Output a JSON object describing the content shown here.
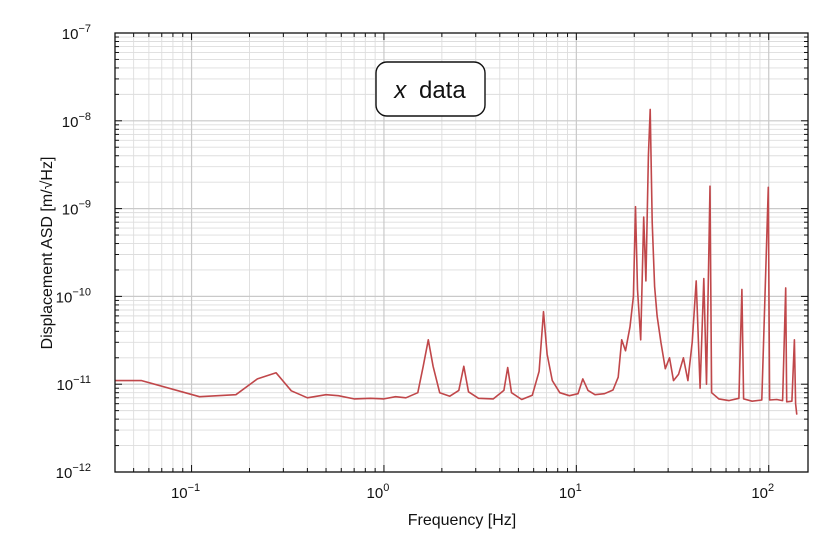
{
  "chart_data": {
    "type": "line",
    "xlabel": "Frequency [Hz]",
    "ylabel": "Displacement ASD [m/√Hz]",
    "x_scale": "log",
    "y_scale": "log",
    "xlim": [
      0.04,
      160
    ],
    "ylim": [
      1e-12,
      1e-07
    ],
    "grid": true,
    "x_ticks": [
      {
        "value": 0.1,
        "base": "10",
        "exp": "−1"
      },
      {
        "value": 1,
        "base": "10",
        "exp": "0"
      },
      {
        "value": 10,
        "base": "10",
        "exp": "1"
      },
      {
        "value": 100,
        "base": "10",
        "exp": "2"
      }
    ],
    "y_ticks": [
      {
        "value": 1e-12,
        "base": "10",
        "exp": "−12"
      },
      {
        "value": 1e-11,
        "base": "10",
        "exp": "−11"
      },
      {
        "value": 1e-10,
        "base": "10",
        "exp": "−10"
      },
      {
        "value": 1e-09,
        "base": "10",
        "exp": "−9"
      },
      {
        "value": 1e-08,
        "base": "10",
        "exp": "−8"
      },
      {
        "value": 1e-07,
        "base": "10",
        "exp": "−7"
      }
    ],
    "annotation": {
      "var": "x",
      "text": "data"
    },
    "series": [
      {
        "color": "#c0474a",
        "points": [
          [
            0.04,
            1.1e-11
          ],
          [
            0.055,
            1.1e-11
          ],
          [
            0.11,
            7.2e-12
          ],
          [
            0.17,
            7.6e-12
          ],
          [
            0.22,
            1.15e-11
          ],
          [
            0.275,
            1.35e-11
          ],
          [
            0.33,
            8.4e-12
          ],
          [
            0.4,
            7e-12
          ],
          [
            0.5,
            7.6e-12
          ],
          [
            0.58,
            7.4e-12
          ],
          [
            0.7,
            6.8e-12
          ],
          [
            0.85,
            6.9e-12
          ],
          [
            1.0,
            6.8e-12
          ],
          [
            1.15,
            7.2e-12
          ],
          [
            1.3,
            7e-12
          ],
          [
            1.5,
            8e-12
          ],
          [
            1.6,
            1.6e-11
          ],
          [
            1.7,
            3.2e-11
          ],
          [
            1.8,
            1.6e-11
          ],
          [
            1.95,
            8e-12
          ],
          [
            2.2,
            7.3e-12
          ],
          [
            2.45,
            8.5e-12
          ],
          [
            2.6,
            1.6e-11
          ],
          [
            2.75,
            8.2e-12
          ],
          [
            3.1,
            6.9e-12
          ],
          [
            3.7,
            6.8e-12
          ],
          [
            4.2,
            8.5e-12
          ],
          [
            4.4,
            1.55e-11
          ],
          [
            4.6,
            8e-12
          ],
          [
            5.2,
            6.7e-12
          ],
          [
            5.9,
            7.5e-12
          ],
          [
            6.4,
            1.4e-11
          ],
          [
            6.75,
            6.7e-11
          ],
          [
            7.05,
            2.2e-11
          ],
          [
            7.5,
            1.1e-11
          ],
          [
            8.2,
            8e-12
          ],
          [
            9.2,
            7.4e-12
          ],
          [
            10.2,
            7.8e-12
          ],
          [
            10.8,
            1.15e-11
          ],
          [
            11.5,
            8.5e-12
          ],
          [
            12.5,
            7.6e-12
          ],
          [
            14,
            7.8e-12
          ],
          [
            15.5,
            8.6e-12
          ],
          [
            16.5,
            1.2e-11
          ],
          [
            17.2,
            3.2e-11
          ],
          [
            18,
            2.4e-11
          ],
          [
            19,
            4.5e-11
          ],
          [
            19.8,
            1e-10
          ],
          [
            20.3,
            1.05e-09
          ],
          [
            20.8,
            1.2e-10
          ],
          [
            21.6,
            3.2e-11
          ],
          [
            22.4,
            8e-10
          ],
          [
            23,
            1.5e-10
          ],
          [
            23.7,
            4e-09
          ],
          [
            24.2,
            1.35e-08
          ],
          [
            24.8,
            7e-10
          ],
          [
            25.5,
            1.3e-10
          ],
          [
            26.3,
            6e-11
          ],
          [
            27.5,
            3e-11
          ],
          [
            29,
            1.5e-11
          ],
          [
            30.5,
            2e-11
          ],
          [
            32,
            1.1e-11
          ],
          [
            34,
            1.3e-11
          ],
          [
            36,
            2e-11
          ],
          [
            38,
            1.1e-11
          ],
          [
            40,
            3e-11
          ],
          [
            42,
            1.5e-10
          ],
          [
            44,
            9e-12
          ],
          [
            46,
            1.6e-10
          ],
          [
            47.5,
            1e-11
          ],
          [
            49.5,
            1.8e-09
          ],
          [
            50.5,
            8e-12
          ],
          [
            55,
            6.8e-12
          ],
          [
            62,
            6.5e-12
          ],
          [
            70,
            6.9e-12
          ],
          [
            72.5,
            1.2e-10
          ],
          [
            74,
            6.8e-12
          ],
          [
            82,
            6.4e-12
          ],
          [
            92,
            6.6e-12
          ],
          [
            99.5,
            1.75e-09
          ],
          [
            101,
            6.6e-12
          ],
          [
            110,
            6.7e-12
          ],
          [
            118,
            6.5e-12
          ],
          [
            122.5,
            1.25e-10
          ],
          [
            124,
            6.3e-12
          ],
          [
            132,
            6.4e-12
          ],
          [
            136,
            3.2e-11
          ],
          [
            138,
            6e-12
          ],
          [
            140,
            4.5e-12
          ]
        ]
      }
    ]
  }
}
